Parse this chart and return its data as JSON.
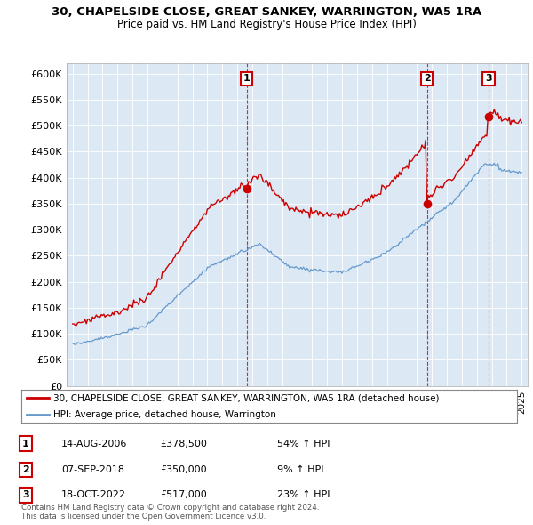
{
  "title1": "30, CHAPELSIDE CLOSE, GREAT SANKEY, WARRINGTON, WA5 1RA",
  "title2": "Price paid vs. HM Land Registry's House Price Index (HPI)",
  "ylabel_ticks": [
    "£0",
    "£50K",
    "£100K",
    "£150K",
    "£200K",
    "£250K",
    "£300K",
    "£350K",
    "£400K",
    "£450K",
    "£500K",
    "£550K",
    "£600K"
  ],
  "ytick_values": [
    0,
    50000,
    100000,
    150000,
    200000,
    250000,
    300000,
    350000,
    400000,
    450000,
    500000,
    550000,
    600000
  ],
  "ylim": [
    0,
    620000
  ],
  "sale_dates_num": [
    2006.62,
    2018.68,
    2022.79
  ],
  "sale_prices": [
    378500,
    350000,
    517000
  ],
  "sale_labels": [
    "1",
    "2",
    "3"
  ],
  "legend_red": "30, CHAPELSIDE CLOSE, GREAT SANKEY, WARRINGTON, WA5 1RA (detached house)",
  "legend_blue": "HPI: Average price, detached house, Warrington",
  "table_data": [
    [
      "1",
      "14-AUG-2006",
      "£378,500",
      "54% ↑ HPI"
    ],
    [
      "2",
      "07-SEP-2018",
      "£350,000",
      "9% ↑ HPI"
    ],
    [
      "3",
      "18-OCT-2022",
      "£517,000",
      "23% ↑ HPI"
    ]
  ],
  "footnote": "Contains HM Land Registry data © Crown copyright and database right 2024.\nThis data is licensed under the Open Government Licence v3.0.",
  "red_color": "#cc0000",
  "blue_color": "#6699cc",
  "chart_bg": "#dce9f5",
  "vline_color": "#cc0000",
  "grid_color": "#ffffff",
  "bg_color": "#ffffff"
}
